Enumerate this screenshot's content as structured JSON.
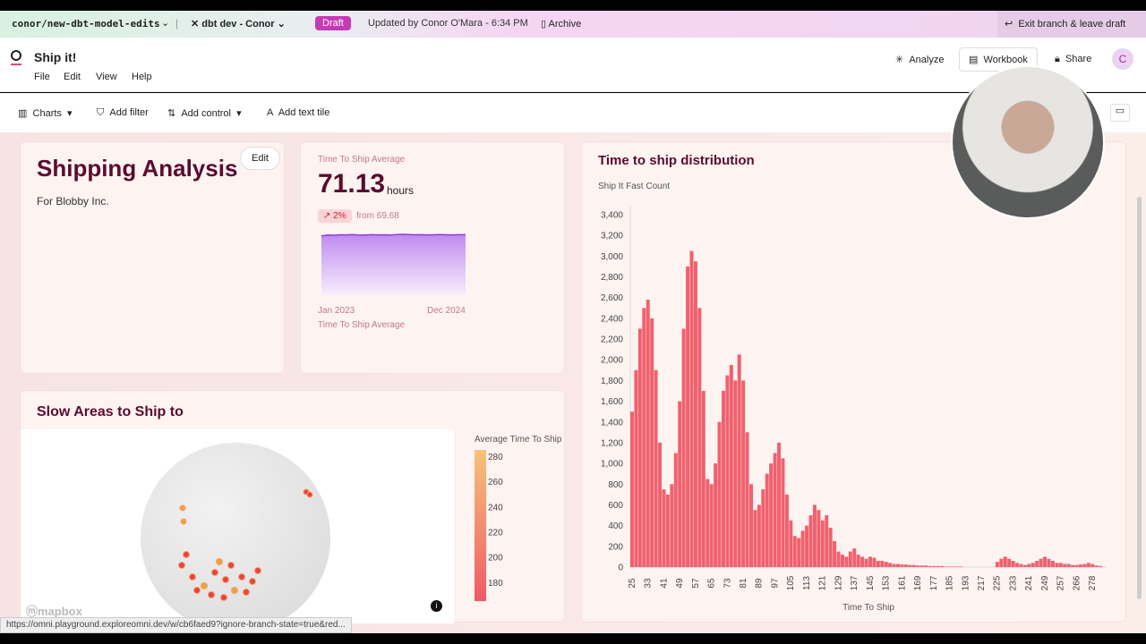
{
  "topbar": {
    "branch": "conor/new-dbt-model-edits",
    "environment": "dbt dev - Conor",
    "status": "Draft",
    "updated": "Updated by Conor O'Mara - 6:34 PM",
    "archive": "Archive",
    "exit": "Exit branch & leave draft"
  },
  "header": {
    "title": "Ship it!",
    "menu": [
      "File",
      "Edit",
      "View",
      "Help"
    ],
    "actions": [
      "Analyze",
      "Workbook",
      "Share"
    ],
    "avatar": "C"
  },
  "toolbar": [
    "Charts",
    "Add filter",
    "Add control",
    "Add text tile"
  ],
  "text_tile": {
    "title": "Shipping Analysis",
    "subtitle": "For Blobby Inc.",
    "edit": "Edit"
  },
  "kpi": {
    "label": "Time To Ship Average",
    "value": "71.13",
    "unit": "hours",
    "change": "2%",
    "from": "from 69.68",
    "start": "Jan 2023",
    "end": "Dec 2024",
    "caption": "Time To Ship Average",
    "sparkline": [
      69.7,
      70.8,
      70.5,
      71.0,
      70.9,
      71.2,
      70.6,
      70.8,
      71.1,
      70.9,
      71.0,
      70.7,
      71.3,
      71.5,
      71.2,
      71.0,
      71.1,
      70.9,
      71.0,
      71.2,
      71.0,
      70.9,
      71.1,
      71.13
    ]
  },
  "chart_data": {
    "type": "bar",
    "title": "Time to ship distribution",
    "y_label": "Ship It Fast Count",
    "x_label": "Time To Ship",
    "color": "#f0616e",
    "grid": false,
    "categories": [
      "25",
      null,
      null,
      null,
      "33",
      null,
      null,
      null,
      "41",
      null,
      null,
      null,
      "49",
      null,
      null,
      null,
      "57",
      null,
      null,
      null,
      "65",
      null,
      null,
      null,
      "73",
      null,
      null,
      null,
      "81",
      null,
      null,
      null,
      "89",
      null,
      null,
      null,
      "97",
      null,
      null,
      null,
      "105",
      null,
      null,
      null,
      "113",
      null,
      null,
      null,
      "121",
      null,
      null,
      null,
      "129",
      null,
      null,
      null,
      "137",
      null,
      null,
      null,
      "145",
      null,
      null,
      null,
      "153",
      null,
      null,
      null,
      "161",
      null,
      null,
      null,
      "169",
      null,
      null,
      null,
      "177",
      null,
      null,
      null,
      "185",
      null,
      null,
      null,
      "193",
      null,
      null,
      null,
      "217",
      null,
      null,
      null,
      "225",
      null,
      null,
      null,
      "233",
      null,
      null,
      null,
      "241",
      null,
      null,
      null,
      "249",
      null,
      null,
      null,
      "257",
      null,
      null,
      null,
      "266",
      null,
      null,
      null,
      "278",
      null,
      null,
      null
    ],
    "values": [
      1500,
      1900,
      2300,
      2500,
      2580,
      2400,
      1900,
      1200,
      750,
      700,
      800,
      1100,
      1600,
      2300,
      2900,
      3050,
      2950,
      2500,
      1700,
      850,
      800,
      1000,
      1400,
      1700,
      1850,
      1950,
      1800,
      2050,
      1800,
      1300,
      800,
      550,
      600,
      750,
      900,
      1000,
      1100,
      1200,
      1050,
      700,
      450,
      300,
      280,
      350,
      400,
      500,
      600,
      550,
      450,
      500,
      380,
      250,
      150,
      120,
      100,
      150,
      180,
      120,
      100,
      80,
      100,
      90,
      60,
      60,
      50,
      40,
      30,
      30,
      25,
      25,
      20,
      20,
      15,
      15,
      15,
      10,
      10,
      10,
      10,
      5,
      5,
      5,
      5,
      5,
      0,
      0,
      0,
      0,
      0,
      0,
      0,
      0,
      50,
      80,
      100,
      80,
      60,
      40,
      30,
      20,
      30,
      40,
      60,
      80,
      100,
      80,
      60,
      40,
      40,
      30,
      30,
      20,
      20,
      25,
      30,
      40,
      30,
      15,
      10,
      0
    ],
    "ylim": [
      0,
      3400
    ],
    "yticks": [
      0,
      200,
      400,
      600,
      800,
      {
        "value": 1000,
        "label": "1,000"
      },
      {
        "value": 1200,
        "label": "1,200"
      },
      {
        "value": 1400,
        "label": "1,400"
      },
      {
        "value": 1600,
        "label": "1,600"
      },
      {
        "value": 1800,
        "label": "1,800"
      },
      {
        "value": 2000,
        "label": "2,000"
      },
      {
        "value": 2200,
        "label": "2,200"
      },
      {
        "value": 2400,
        "label": "2,400"
      },
      {
        "value": 2600,
        "label": "2,600"
      },
      {
        "value": 2800,
        "label": "2,800"
      },
      {
        "value": 3000,
        "label": "3,000"
      },
      {
        "value": 3200,
        "label": "3,200"
      },
      {
        "value": 3400,
        "label": "3,400"
      }
    ]
  },
  "map": {
    "title": "Slow Areas to Ship to",
    "legend_title": "Average Time To Ship",
    "legend_ticks": [
      280,
      260,
      240,
      220,
      200,
      180
    ],
    "legend_lim": [
      165,
      285
    ],
    "attribution": "mapbox"
  },
  "status_url": "https://omni.playground.exploreomni.dev/w/cb6faed9?ignore-branch-state=true&red..."
}
